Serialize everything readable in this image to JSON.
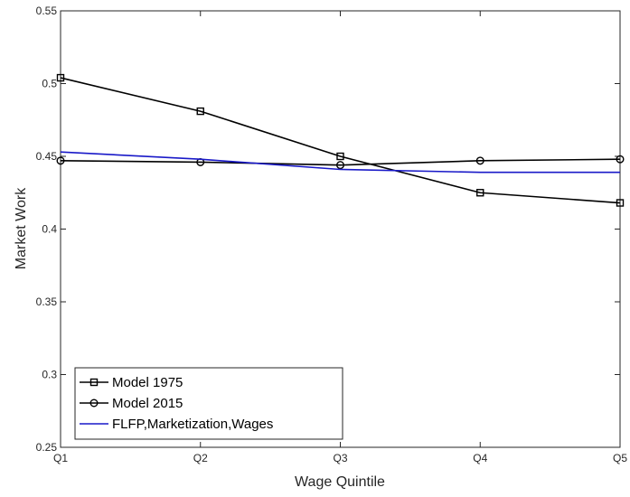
{
  "chart_data": {
    "type": "line",
    "title": "",
    "xlabel": "Wage Quintile",
    "ylabel": "Market Work",
    "categories": [
      "Q1",
      "Q2",
      "Q3",
      "Q4",
      "Q5"
    ],
    "ylim": [
      0.25,
      0.55
    ],
    "yticks": [
      "0.25",
      "0.3",
      "0.35",
      "0.4",
      "0.45",
      "0.5",
      "0.55"
    ],
    "ytick_values": [
      0.25,
      0.3,
      0.35,
      0.4,
      0.45,
      0.5,
      0.55
    ],
    "grid": false,
    "legend_position": "bottom-left",
    "series": [
      {
        "name": "Model 1975",
        "marker": "square",
        "color": "#000000",
        "values": [
          0.504,
          0.481,
          0.45,
          0.425,
          0.418
        ]
      },
      {
        "name": "Model 2015",
        "marker": "circle",
        "color": "#000000",
        "values": [
          0.447,
          0.446,
          0.444,
          0.447,
          0.448
        ]
      },
      {
        "name": "FLFP,Marketization,Wages",
        "marker": "none",
        "color": "#1919c8",
        "values": [
          0.453,
          0.448,
          0.441,
          0.439,
          0.439
        ]
      }
    ]
  }
}
